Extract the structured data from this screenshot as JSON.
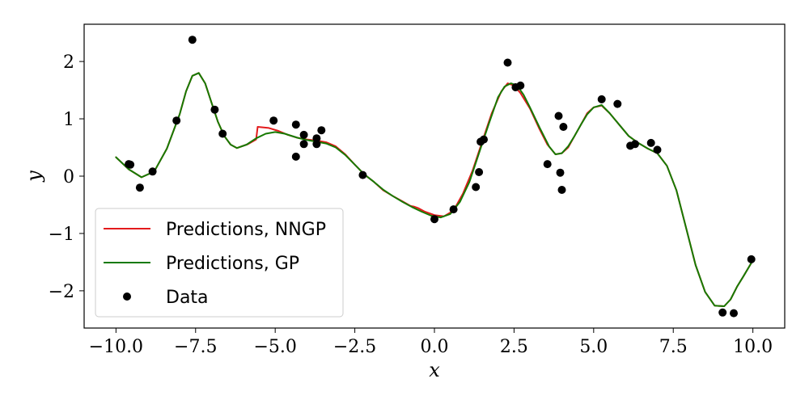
{
  "chart_data": {
    "type": "line",
    "xlabel": "x",
    "ylabel": "y",
    "xlim": [
      -11.0,
      11.0
    ],
    "ylim": [
      -2.65,
      2.65
    ],
    "xticks": [
      -10.0,
      -7.5,
      -5.0,
      -2.5,
      0.0,
      2.5,
      5.0,
      7.5,
      10.0
    ],
    "xtick_labels": [
      "−10.0",
      "−7.5",
      "−5.0",
      "−2.5",
      "0.0",
      "2.5",
      "5.0",
      "7.5",
      "10.0"
    ],
    "yticks": [
      -2,
      -1,
      0,
      1,
      2
    ],
    "ytick_labels": [
      "−2",
      "−1",
      "0",
      "1",
      "2"
    ],
    "grid": false,
    "legend_position": "lower-left",
    "series": [
      {
        "name": "Predictions, NNGP",
        "kind": "line",
        "color": "#e31a1c",
        "x": [
          -10.0,
          -9.6,
          -9.2,
          -8.8,
          -8.4,
          -8.0,
          -7.8,
          -7.6,
          -7.4,
          -7.2,
          -7.0,
          -6.8,
          -6.6,
          -6.4,
          -6.2,
          -5.9,
          -5.85,
          -5.6,
          -5.55,
          -5.2,
          -4.9,
          -4.6,
          -4.3,
          -4.0,
          -3.7,
          -3.4,
          -3.1,
          -2.8,
          -2.5,
          -2.2,
          -1.9,
          -1.6,
          -1.3,
          -1.0,
          -0.75,
          -0.65,
          -0.5,
          -0.3,
          0.0,
          0.3,
          0.6,
          0.9,
          1.2,
          1.5,
          1.8,
          2.1,
          2.3,
          2.5,
          2.7,
          3.0,
          3.3,
          3.55,
          3.8,
          4.0,
          4.2,
          4.4,
          4.6,
          4.8,
          5.0,
          5.25,
          5.5,
          5.8,
          6.1,
          6.4,
          6.7,
          7.0,
          7.3,
          7.6,
          7.9,
          8.2,
          8.5,
          8.8,
          9.1,
          9.3,
          9.5,
          9.7,
          10.0
        ],
        "y": [
          0.33,
          0.12,
          -0.02,
          0.08,
          0.48,
          1.08,
          1.48,
          1.75,
          1.8,
          1.62,
          1.28,
          0.95,
          0.7,
          0.55,
          0.49,
          0.55,
          0.56,
          0.64,
          0.86,
          0.84,
          0.79,
          0.72,
          0.67,
          0.64,
          0.62,
          0.59,
          0.52,
          0.38,
          0.2,
          0.03,
          -0.1,
          -0.25,
          -0.35,
          -0.44,
          -0.52,
          -0.53,
          -0.56,
          -0.62,
          -0.68,
          -0.7,
          -0.6,
          -0.3,
          0.1,
          0.6,
          1.1,
          1.48,
          1.62,
          1.58,
          1.45,
          1.18,
          0.82,
          0.55,
          0.38,
          0.4,
          0.5,
          0.7,
          0.9,
          1.1,
          1.2,
          1.23,
          1.1,
          0.9,
          0.7,
          0.58,
          0.48,
          0.4,
          0.18,
          -0.25,
          -0.9,
          -1.55,
          -2.02,
          -2.26,
          -2.27,
          -2.15,
          -1.93,
          -1.75,
          -1.47
        ]
      },
      {
        "name": "Predictions, GP",
        "kind": "line",
        "color": "#167a00",
        "x": [
          -10.0,
          -9.6,
          -9.2,
          -8.8,
          -8.4,
          -8.0,
          -7.8,
          -7.6,
          -7.4,
          -7.2,
          -7.0,
          -6.8,
          -6.6,
          -6.4,
          -6.2,
          -5.9,
          -5.6,
          -5.3,
          -5.0,
          -4.7,
          -4.3,
          -4.0,
          -3.7,
          -3.4,
          -3.1,
          -2.8,
          -2.5,
          -2.2,
          -1.9,
          -1.6,
          -1.3,
          -1.0,
          -0.7,
          -0.4,
          -0.1,
          0.2,
          0.5,
          0.8,
          1.1,
          1.4,
          1.7,
          2.0,
          2.2,
          2.4,
          2.6,
          2.8,
          3.0,
          3.3,
          3.6,
          3.8,
          4.0,
          4.2,
          4.4,
          4.6,
          4.8,
          5.0,
          5.25,
          5.5,
          5.8,
          6.1,
          6.4,
          6.7,
          7.0,
          7.3,
          7.6,
          7.9,
          8.2,
          8.5,
          8.8,
          9.1,
          9.3,
          9.5,
          9.7,
          10.0
        ],
        "y": [
          0.33,
          0.12,
          -0.02,
          0.08,
          0.48,
          1.08,
          1.48,
          1.75,
          1.8,
          1.62,
          1.28,
          0.95,
          0.7,
          0.55,
          0.49,
          0.55,
          0.66,
          0.74,
          0.77,
          0.74,
          0.67,
          0.63,
          0.6,
          0.57,
          0.5,
          0.37,
          0.2,
          0.03,
          -0.1,
          -0.24,
          -0.35,
          -0.45,
          -0.54,
          -0.62,
          -0.69,
          -0.72,
          -0.66,
          -0.45,
          -0.1,
          0.4,
          0.9,
          1.38,
          1.56,
          1.62,
          1.58,
          1.42,
          1.2,
          0.85,
          0.52,
          0.38,
          0.4,
          0.52,
          0.7,
          0.9,
          1.08,
          1.2,
          1.24,
          1.1,
          0.9,
          0.7,
          0.58,
          0.48,
          0.4,
          0.18,
          -0.25,
          -0.9,
          -1.55,
          -2.02,
          -2.26,
          -2.27,
          -2.15,
          -1.93,
          -1.75,
          -1.47
        ]
      },
      {
        "name": "Data",
        "kind": "scatter",
        "color": "#000000",
        "x": [
          -9.6,
          -9.55,
          -9.25,
          -8.85,
          -8.1,
          -7.6,
          -6.9,
          -6.65,
          -5.05,
          -4.35,
          -4.35,
          -4.1,
          -4.1,
          -3.7,
          -3.7,
          -3.55,
          -2.25,
          0.0,
          0.6,
          1.3,
          1.4,
          1.45,
          1.55,
          2.3,
          2.55,
          2.7,
          3.55,
          3.9,
          3.95,
          4.0,
          4.05,
          5.25,
          5.75,
          6.15,
          6.3,
          6.8,
          7.0,
          9.05,
          9.4,
          9.95
        ],
        "y": [
          0.21,
          0.2,
          -0.2,
          0.08,
          0.97,
          2.38,
          1.16,
          0.74,
          0.97,
          0.9,
          0.34,
          0.72,
          0.56,
          0.66,
          0.56,
          0.8,
          0.02,
          -0.75,
          -0.58,
          -0.19,
          0.07,
          0.6,
          0.64,
          1.98,
          1.55,
          1.58,
          0.21,
          1.05,
          0.06,
          -0.24,
          0.86,
          1.34,
          1.26,
          0.53,
          0.56,
          0.58,
          0.46,
          -2.38,
          -2.39,
          -1.45
        ]
      }
    ]
  }
}
